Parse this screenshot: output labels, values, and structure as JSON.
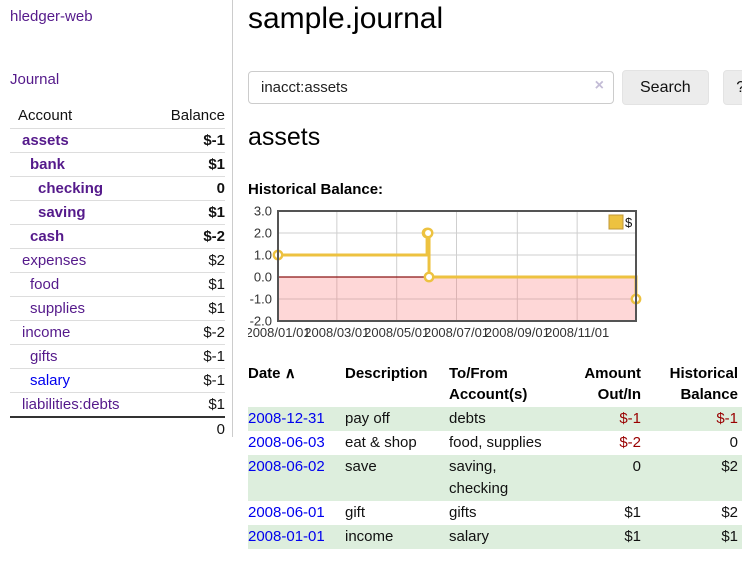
{
  "sidebar": {
    "app_title": "hledger-web",
    "nav_journal": "Journal",
    "accounts": {
      "header_account": "Account",
      "header_balance": "Balance",
      "rows": [
        {
          "name": "assets",
          "level": 0,
          "bold": true,
          "link_color": "purple",
          "balance": "$-1",
          "negative": "strong"
        },
        {
          "name": "bank",
          "level": 1,
          "bold": true,
          "link_color": "purple",
          "balance": "$1",
          "negative": null
        },
        {
          "name": "checking",
          "level": 2,
          "bold": true,
          "link_color": "purple",
          "balance": "0",
          "negative": null
        },
        {
          "name": "saving",
          "level": 2,
          "bold": true,
          "link_color": "purple",
          "balance": "$1",
          "negative": null
        },
        {
          "name": "cash",
          "level": 1,
          "bold": true,
          "link_color": "purple",
          "balance": "$-2",
          "negative": "strong"
        },
        {
          "name": "expenses",
          "level": 0,
          "bold": false,
          "link_color": "purple",
          "balance": "$2",
          "negative": null
        },
        {
          "name": "food",
          "level": 1,
          "bold": false,
          "link_color": "purple",
          "balance": "$1",
          "negative": null
        },
        {
          "name": "supplies",
          "level": 1,
          "bold": false,
          "link_color": "purple",
          "balance": "$1",
          "negative": null
        },
        {
          "name": "income",
          "level": 0,
          "bold": false,
          "link_color": "purple",
          "balance": "$-2",
          "negative": "muted"
        },
        {
          "name": "gifts",
          "level": 1,
          "bold": false,
          "link_color": "purple",
          "balance": "$-1",
          "negative": "muted"
        },
        {
          "name": "salary",
          "level": 1,
          "bold": false,
          "link_color": "blue",
          "balance": "$-1",
          "negative": "muted"
        },
        {
          "name": "liabilities:debts",
          "level": 0,
          "bold": false,
          "link_color": "purple",
          "balance": "$1",
          "negative": null
        }
      ],
      "total": "0"
    }
  },
  "main": {
    "title": "sample.journal",
    "search": {
      "value": "inacct:assets",
      "clear_icon": "×",
      "button_label": "Search",
      "help_label": "?"
    },
    "account_heading": "assets",
    "chart_label": "Historical Balance:",
    "register": {
      "headers": {
        "date": "Date",
        "sort_icon": "∧",
        "description": "Description",
        "accounts": "To/From Account(s)",
        "amount": "Amount Out/In",
        "balance": "Historical Balance"
      },
      "rows": [
        {
          "date": "2008-12-31",
          "description": "pay off",
          "accounts": "debts",
          "amount": "$-1",
          "amount_negative": true,
          "balance": "$-1",
          "balance_negative": true,
          "shaded": true
        },
        {
          "date": "2008-06-03",
          "description": "eat & shop",
          "accounts": "food, supplies",
          "amount": "$-2",
          "amount_negative": true,
          "balance": "0",
          "balance_negative": false,
          "shaded": false
        },
        {
          "date": "2008-06-02",
          "description": "save",
          "accounts": "saving, checking",
          "amount": "0",
          "amount_negative": false,
          "balance": "$2",
          "balance_negative": false,
          "shaded": true
        },
        {
          "date": "2008-06-01",
          "description": "gift",
          "accounts": "gifts",
          "amount": "$1",
          "amount_negative": false,
          "balance": "$2",
          "balance_negative": false,
          "shaded": false
        },
        {
          "date": "2008-01-01",
          "description": "income",
          "accounts": "salary",
          "amount": "$1",
          "amount_negative": false,
          "balance": "$1",
          "balance_negative": false,
          "shaded": true
        }
      ]
    }
  },
  "colors": {
    "link_purple": "#551a8b",
    "link_blue": "#0000ee",
    "negative_strong": "#990000",
    "negative_muted": "#b36b6b",
    "row_stripe_green": "#ddeedd",
    "series_gold": "#EDC240"
  },
  "chart_data": {
    "type": "line",
    "title": "Historical Balance",
    "step": true,
    "x": [
      "2008-01-01",
      "2008-06-01",
      "2008-06-02",
      "2008-06-03",
      "2008-12-31"
    ],
    "series": [
      {
        "name": "$",
        "color": "#EDC240",
        "values": [
          1,
          2,
          2,
          0,
          -1
        ]
      }
    ],
    "x_ticks": [
      {
        "date": "2008-01-01",
        "label": "2008/01/01"
      },
      {
        "date": "2008-03-01",
        "label": "2008/03/01"
      },
      {
        "date": "2008-05-01",
        "label": "2008/05/01"
      },
      {
        "date": "2008-07-01",
        "label": "2008/07/01"
      },
      {
        "date": "2008-09-01",
        "label": "2008/09/01"
      },
      {
        "date": "2008-11-01",
        "label": "2008/11/01"
      }
    ],
    "y_ticks": [
      {
        "value": 3,
        "label": "3.0"
      },
      {
        "value": 2,
        "label": "2.0"
      },
      {
        "value": 1,
        "label": "1.0"
      },
      {
        "value": 0,
        "label": "0.0"
      },
      {
        "value": -1,
        "label": "-1.0"
      },
      {
        "value": -2,
        "label": "-2.0"
      }
    ],
    "xlim": [
      "2008-01-01",
      "2008-12-31"
    ],
    "ylim": [
      -2,
      3
    ],
    "grid": true,
    "legend": {
      "position": "top-right",
      "label": "$"
    },
    "below_zero_fill": "rgba(250,110,110,0.28)",
    "zero_line_color": "#8b1414",
    "plot_border_color": "#545454",
    "grid_color": "#cfcfcf"
  }
}
